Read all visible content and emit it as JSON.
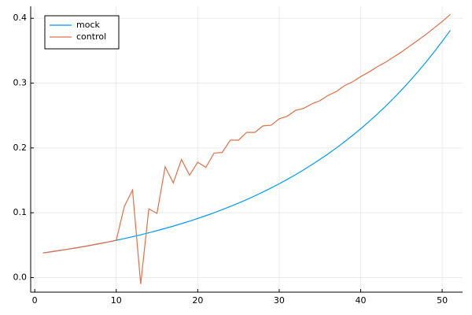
{
  "chart_data": {
    "type": "line",
    "x": [
      1,
      2,
      3,
      4,
      5,
      6,
      7,
      8,
      9,
      10,
      11,
      12,
      13,
      14,
      15,
      16,
      17,
      18,
      19,
      20,
      21,
      22,
      23,
      24,
      25,
      26,
      27,
      28,
      29,
      30,
      31,
      32,
      33,
      34,
      35,
      36,
      37,
      38,
      39,
      40,
      41,
      42,
      43,
      44,
      45,
      46,
      47,
      48,
      49,
      50,
      51
    ],
    "series": [
      {
        "name": "mock",
        "color": "#009af9",
        "values": [
          0.038,
          0.0398,
          0.0417,
          0.0436,
          0.0457,
          0.0478,
          0.0501,
          0.0525,
          0.0549,
          0.0575,
          0.0602,
          0.0631,
          0.066,
          0.0692,
          0.0724,
          0.0759,
          0.0794,
          0.0832,
          0.0871,
          0.0912,
          0.0955,
          0.1,
          0.1048,
          0.1097,
          0.1149,
          0.1203,
          0.126,
          0.132,
          0.1382,
          0.1447,
          0.1516,
          0.1587,
          0.1662,
          0.1741,
          0.1823,
          0.1909,
          0.1999,
          0.2094,
          0.2193,
          0.2296,
          0.2405,
          0.2518,
          0.2637,
          0.2762,
          0.2892,
          0.3029,
          0.3172,
          0.3322,
          0.3479,
          0.3643,
          0.3815
        ]
      },
      {
        "name": "control",
        "color": "#e26f46",
        "values": [
          0.038,
          0.0398,
          0.0417,
          0.0436,
          0.0457,
          0.0478,
          0.0501,
          0.0525,
          0.0549,
          0.0575,
          0.11,
          0.135,
          -0.01,
          0.106,
          0.099,
          0.171,
          0.146,
          0.182,
          0.158,
          0.178,
          0.17,
          0.192,
          0.193,
          0.212,
          0.212,
          0.224,
          0.224,
          0.234,
          0.235,
          0.245,
          0.249,
          0.258,
          0.261,
          0.268,
          0.273,
          0.281,
          0.287,
          0.296,
          0.302,
          0.31,
          0.317,
          0.325,
          0.332,
          0.34,
          0.348,
          0.357,
          0.366,
          0.375,
          0.385,
          0.395,
          0.406
        ]
      }
    ],
    "xlim": [
      -0.5,
      52.5
    ],
    "xticks": [
      0,
      10,
      20,
      30,
      40,
      50
    ],
    "ylim": [
      -0.0225,
      0.4185
    ],
    "yticks": [
      {
        "value": 0,
        "label": "0.0"
      },
      {
        "value": 0.1,
        "label": "0.1"
      },
      {
        "value": 0.2,
        "label": "0.2"
      },
      {
        "value": 0.3,
        "label": "0.3"
      },
      {
        "value": 0.4,
        "label": "0.4"
      }
    ],
    "grid": true,
    "legend": "top-left"
  }
}
